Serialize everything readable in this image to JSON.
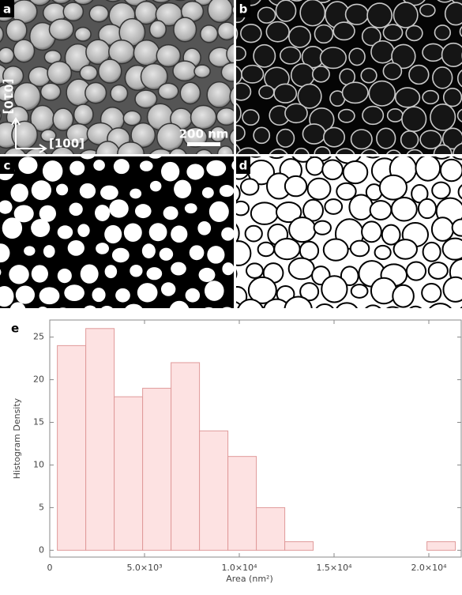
{
  "panel_labels": [
    "a",
    "b",
    "c",
    "d"
  ],
  "annotations": {
    "axis_up": "[010]",
    "axis_right": "[100]",
    "scale_bar": "200 nm"
  },
  "chart_data": {
    "type": "histogram",
    "panel_label": "e",
    "x_label": "Area (nm²)",
    "y_label": "Histogram Density",
    "bins": [
      400,
      1900,
      3400,
      4900,
      6400,
      7900,
      9400,
      10900,
      12400,
      13900,
      15400,
      16900,
      18400,
      19900,
      21400
    ],
    "values": [
      24,
      26,
      18,
      19,
      22,
      14,
      11,
      5,
      1,
      0,
      0,
      0,
      0,
      1
    ],
    "color": "#fde2e2",
    "edge_color": "#e09a9a",
    "xlim": [
      0,
      21750
    ],
    "ylim": [
      -0.8,
      27
    ],
    "xticks": [
      0,
      {
        "value": 5000,
        "label": "5.0×10³"
      },
      {
        "value": 10000,
        "label": "1.0×10⁴"
      },
      {
        "value": 15000,
        "label": "1.5×10⁴"
      },
      {
        "value": 20000,
        "label": "2.0×10⁴"
      }
    ],
    "yticks": [
      0,
      5,
      10,
      15,
      20,
      25
    ]
  }
}
